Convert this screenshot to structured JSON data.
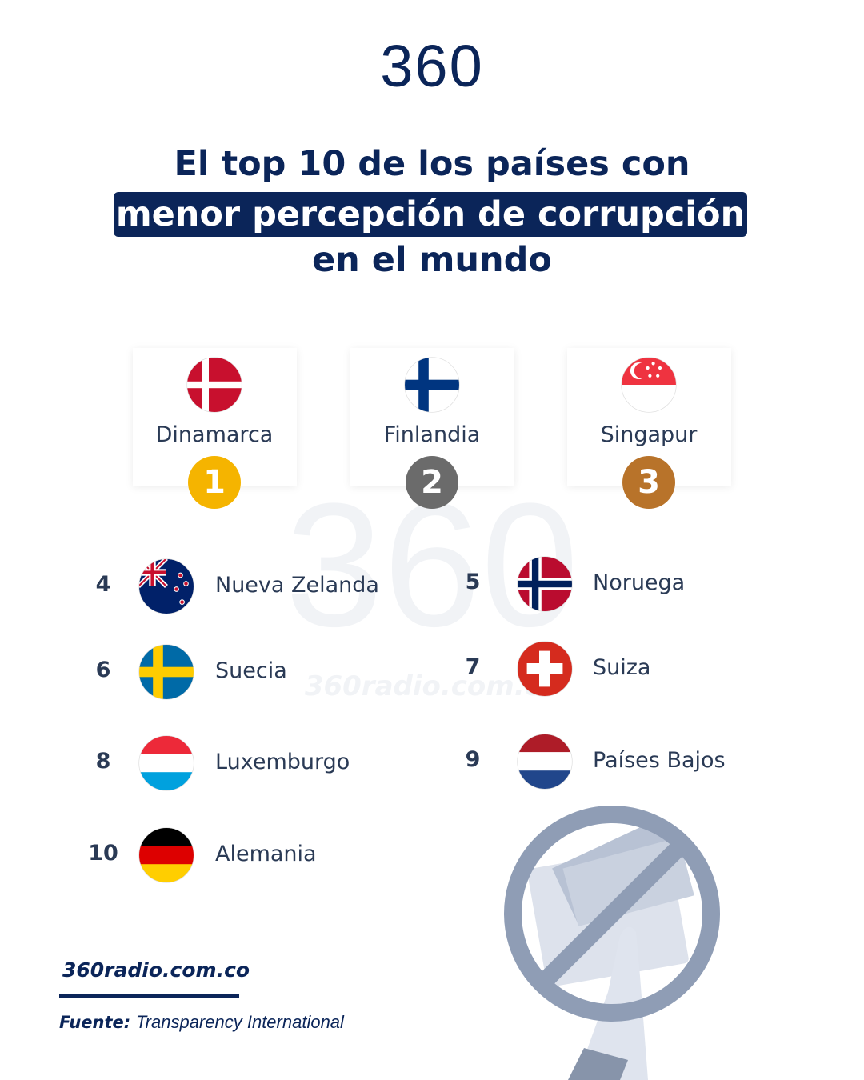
{
  "logo": "360",
  "title": {
    "line1": "El top 10 de los países con",
    "highlight": "menor percepción de corrupción",
    "line3": "en el mundo"
  },
  "podium": [
    {
      "rank": 1,
      "name": "Dinamarca"
    },
    {
      "rank": 2,
      "name": "Finlandia"
    },
    {
      "rank": 3,
      "name": "Singapur"
    }
  ],
  "ranking": [
    {
      "rank": 4,
      "name": "Nueva Zelanda"
    },
    {
      "rank": 5,
      "name": "Noruega"
    },
    {
      "rank": 6,
      "name": "Suecia"
    },
    {
      "rank": 7,
      "name": "Suiza"
    },
    {
      "rank": 8,
      "name": "Luxemburgo"
    },
    {
      "rank": 9,
      "name": "Países Bajos"
    },
    {
      "rank": 10,
      "name": "Alemania"
    }
  ],
  "watermark": {
    "logo": "360",
    "site": "360radio.com.co"
  },
  "footer": {
    "site": "360radio.com.co",
    "source_label": "Fuente:",
    "source": "Transparency International"
  }
}
